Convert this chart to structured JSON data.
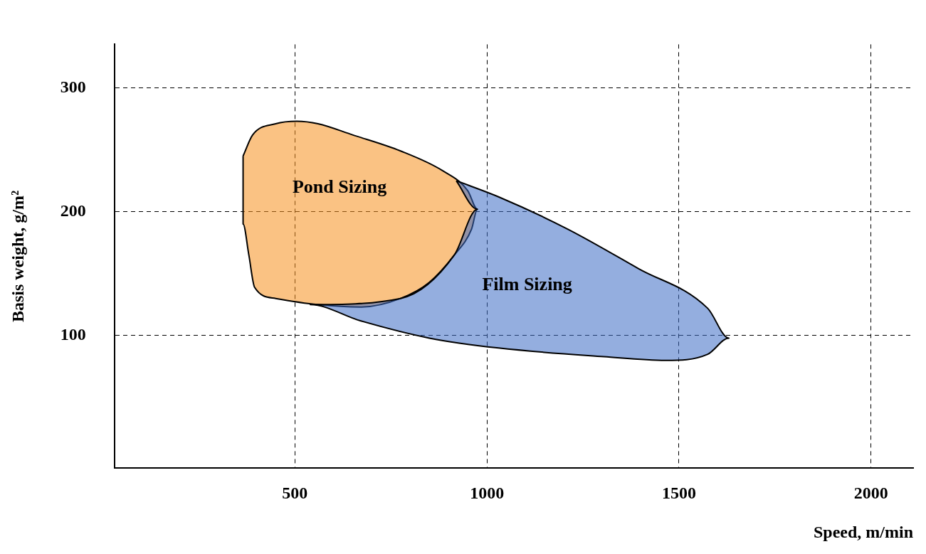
{
  "chart_data": {
    "type": "area",
    "xlabel": "Speed, m/min",
    "ylabel": "Basis weight, g/m²",
    "xlim": [
      30,
      2110
    ],
    "ylim": [
      -7,
      335
    ],
    "xticks": [
      500,
      1000,
      1500,
      2000
    ],
    "yticks": [
      100,
      200,
      300
    ],
    "grid": true,
    "legend": false,
    "line_style": "solid",
    "marker": "none",
    "series": [
      {
        "name": "Film Sizing",
        "color": "#3c6cc4",
        "x": [
          920,
          1030,
          1210,
          1395,
          1575,
          1630,
          1575,
          1465,
          1305,
          1030,
          850,
          670,
          540,
          775,
          915,
          975,
          920
        ],
        "values": [
          225,
          212,
          186,
          154,
          122,
          98,
          85,
          80,
          83,
          90,
          98,
          112,
          125,
          130,
          165,
          202,
          225
        ]
      },
      {
        "name": "Pond Sizing",
        "color": "#f5901e",
        "x": [
          365,
          390,
          450,
          505,
          560,
          650,
          775,
          885,
          950,
          975,
          960,
          915,
          850,
          775,
          670,
          560,
          450,
          395,
          380,
          365,
          365,
          365
        ],
        "values": [
          245,
          262,
          271,
          273,
          271,
          262,
          249,
          233,
          217,
          202,
          186,
          165,
          143,
          130,
          123,
          125,
          130,
          139,
          165,
          190,
          223,
          245
        ]
      }
    ]
  }
}
